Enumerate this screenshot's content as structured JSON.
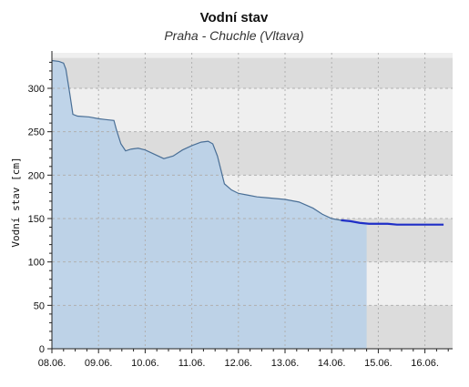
{
  "chart_data": {
    "type": "area",
    "title": "Vodní stav",
    "subtitle": "Praha - Chuchle (Vltava)",
    "ylabel": "Vodní stav [cm]",
    "xlabel": "",
    "x_tick_labels": [
      "08.06.",
      "09.06.",
      "10.06.",
      "11.06.",
      "12.06.",
      "13.06.",
      "14.06.",
      "15.06.",
      "16.06."
    ],
    "y_ticks": [
      0,
      50,
      100,
      150,
      200,
      250,
      300
    ],
    "ylim": [
      0,
      335
    ],
    "xlim": [
      0,
      8.5
    ],
    "grid": true,
    "band_ranges": [
      [
        0,
        50
      ],
      [
        100,
        150
      ],
      [
        200,
        250
      ],
      [
        300,
        335
      ]
    ],
    "series": [
      {
        "kind": "observed",
        "color": "#4a6f96",
        "fill": "#b8d0e8",
        "points": [
          [
            0.0,
            332
          ],
          [
            0.15,
            331
          ],
          [
            0.25,
            329
          ],
          [
            0.3,
            322
          ],
          [
            0.38,
            295
          ],
          [
            0.45,
            270
          ],
          [
            0.55,
            268
          ],
          [
            0.8,
            267
          ],
          [
            1.0,
            265
          ],
          [
            1.15,
            264
          ],
          [
            1.33,
            263
          ],
          [
            1.38,
            253
          ],
          [
            1.48,
            236
          ],
          [
            1.58,
            228
          ],
          [
            1.7,
            230
          ],
          [
            1.85,
            231
          ],
          [
            2.0,
            229
          ],
          [
            2.2,
            224
          ],
          [
            2.4,
            219
          ],
          [
            2.6,
            222
          ],
          [
            2.8,
            229
          ],
          [
            3.0,
            234
          ],
          [
            3.2,
            238
          ],
          [
            3.35,
            239
          ],
          [
            3.45,
            236
          ],
          [
            3.55,
            222
          ],
          [
            3.7,
            190
          ],
          [
            3.85,
            183
          ],
          [
            4.0,
            179
          ],
          [
            4.2,
            177
          ],
          [
            4.4,
            175
          ],
          [
            4.6,
            174
          ],
          [
            5.0,
            172
          ],
          [
            5.3,
            169
          ],
          [
            5.6,
            162
          ],
          [
            5.8,
            155
          ],
          [
            6.0,
            150
          ],
          [
            6.2,
            148
          ]
        ]
      },
      {
        "kind": "forecast",
        "color": "#1f2fc7",
        "points": [
          [
            6.2,
            148
          ],
          [
            6.4,
            147
          ],
          [
            6.6,
            145
          ],
          [
            6.8,
            144
          ],
          [
            7.0,
            144
          ],
          [
            7.2,
            144
          ],
          [
            7.4,
            143
          ],
          [
            7.6,
            143
          ],
          [
            8.0,
            143
          ],
          [
            8.4,
            143
          ]
        ]
      }
    ],
    "observed_fill_end_x": 6.75
  }
}
